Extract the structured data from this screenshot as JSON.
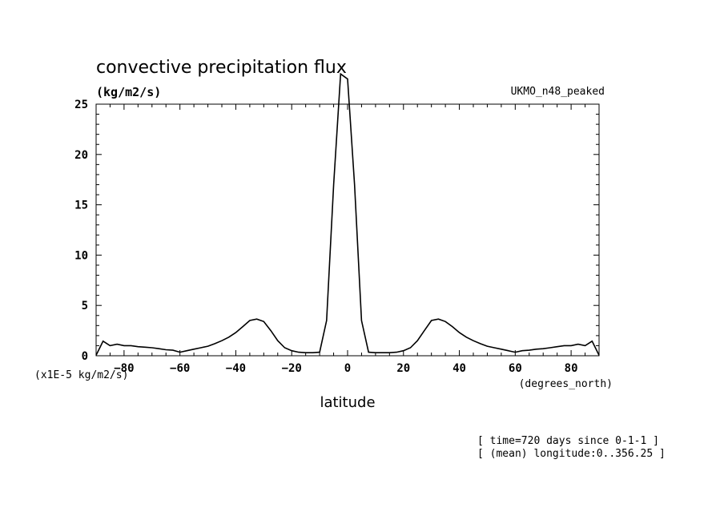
{
  "chart_data": {
    "type": "line",
    "title": "convective precipitation flux",
    "units_label": "(kg/m2/s)",
    "model_label": "UKMO_n48_peaked",
    "scale_label": "(x1E-5 kg/m2/s)",
    "x_units_label": "(degrees_north)",
    "xlabel": "latitude",
    "notes": [
      "[ time=720 days since 0-1-1 ]",
      "[ (mean) longitude:0..356.25 ]"
    ],
    "xlim": [
      -90,
      90
    ],
    "ylim": [
      0,
      25
    ],
    "x_ticks": [
      -80,
      -60,
      -40,
      -20,
      0,
      20,
      40,
      60,
      80
    ],
    "y_ticks": [
      0,
      5,
      10,
      15,
      20,
      25
    ],
    "grid": false,
    "series": [
      {
        "x": [
          -90,
          -87.5,
          -85,
          -82.5,
          -80,
          -77.5,
          -75,
          -72.5,
          -70,
          -67.5,
          -65,
          -62.5,
          -60,
          -57.5,
          -55,
          -52.5,
          -50,
          -47.5,
          -45,
          -42.5,
          -40,
          -37.5,
          -35,
          -32.5,
          -30,
          -27.5,
          -25,
          -22.5,
          -20,
          -17.5,
          -15,
          -12.5,
          -10,
          -7.5,
          -5,
          -2.5,
          0,
          2.5,
          5,
          7.5,
          10,
          12.5,
          15,
          17.5,
          20,
          22.5,
          25,
          27.5,
          30,
          32.5,
          35,
          37.5,
          40,
          42.5,
          45,
          47.5,
          50,
          52.5,
          55,
          57.5,
          60,
          62.5,
          65,
          67.5,
          70,
          72.5,
          75,
          77.5,
          80,
          82.5,
          85,
          87.5,
          90
        ],
        "y": [
          0.05,
          1.45,
          1.0,
          1.15,
          1.0,
          1.0,
          0.9,
          0.85,
          0.8,
          0.7,
          0.6,
          0.55,
          0.35,
          0.5,
          0.65,
          0.8,
          0.95,
          1.2,
          1.5,
          1.85,
          2.3,
          2.9,
          3.5,
          3.65,
          3.4,
          2.5,
          1.5,
          0.8,
          0.5,
          0.35,
          0.3,
          0.3,
          0.35,
          3.5,
          17.0,
          28.0,
          27.5,
          17.0,
          3.5,
          0.35,
          0.3,
          0.3,
          0.3,
          0.35,
          0.5,
          0.8,
          1.5,
          2.5,
          3.5,
          3.65,
          3.4,
          2.9,
          2.3,
          1.85,
          1.5,
          1.2,
          0.95,
          0.8,
          0.65,
          0.5,
          0.35,
          0.5,
          0.55,
          0.65,
          0.7,
          0.8,
          0.9,
          1.0,
          1.0,
          1.15,
          1.0,
          1.45,
          0.05
        ]
      }
    ]
  }
}
